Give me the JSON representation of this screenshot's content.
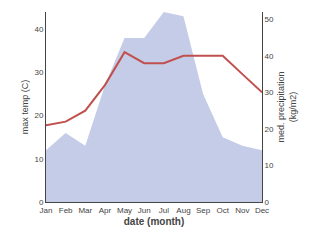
{
  "chart_data": {
    "type": "line",
    "categories": [
      "Jan",
      "Feb",
      "Mar",
      "Apr",
      "May",
      "Jun",
      "Jul",
      "Aug",
      "Sep",
      "Oct",
      "Nov",
      "Dec"
    ],
    "series": [
      {
        "type": "area",
        "color": "#c5cce8",
        "values": [
          12,
          16,
          13,
          27,
          38,
          38,
          44,
          43,
          25,
          15,
          13,
          12
        ]
      },
      {
        "type": "line",
        "color": "#c0504d",
        "axis": "y2",
        "values": [
          21,
          22,
          25,
          32,
          41,
          38,
          38,
          40,
          40,
          40,
          35,
          30
        ]
      }
    ],
    "xlabel": "date (month)",
    "ylabel": "max temp (C)",
    "y2label": "med. precipitation\n(kg/m2)",
    "ylim": [
      0,
      44
    ],
    "yticks": [
      0,
      10,
      20,
      30,
      40
    ],
    "y2lim": [
      0,
      52
    ],
    "y2ticks": [
      0,
      10,
      20,
      30,
      40,
      50
    ],
    "grid": false
  }
}
